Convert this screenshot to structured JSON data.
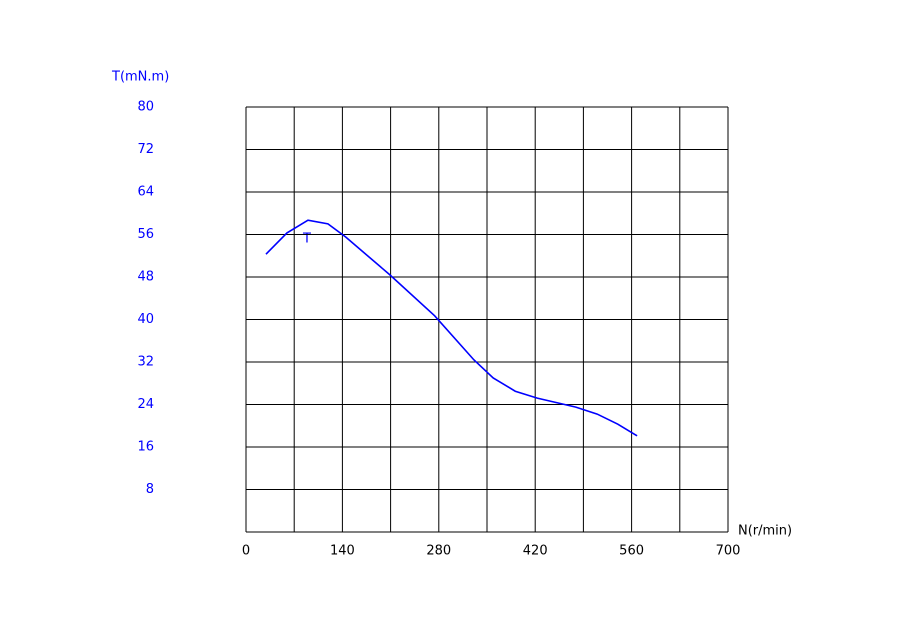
{
  "chart_data": {
    "type": "line",
    "y_label": "T(mN.m)",
    "x_label": "N(r/min)",
    "xlim": [
      0,
      700
    ],
    "xticks": [
      0,
      140,
      280,
      420,
      560,
      700
    ],
    "xminorticks": [
      70,
      210,
      350,
      490,
      630
    ],
    "ylim": [
      0,
      80
    ],
    "yticks": [
      8,
      16,
      24,
      32,
      40,
      48,
      56,
      64,
      72,
      80
    ],
    "grid": true,
    "series": [
      {
        "name": "T",
        "color": "#0000ff",
        "x": [
          29,
          59.5,
          90,
          119,
          145,
          209,
          274,
          331,
          359,
          391,
          423,
          479,
          510,
          540,
          568
        ],
        "values": [
          52.3,
          56.3,
          58.7,
          58,
          55.5,
          48.4,
          40.7,
          32.4,
          29,
          26.5,
          25.2,
          23.5,
          22.2,
          20.3,
          18.1
        ]
      }
    ]
  }
}
